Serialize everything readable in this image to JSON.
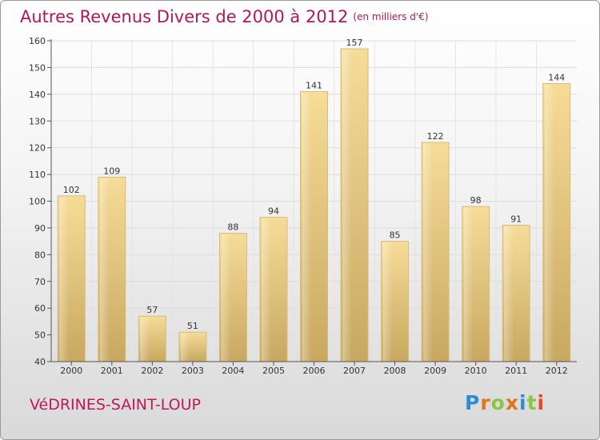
{
  "chart_data": {
    "type": "bar",
    "title": "Autres Revenus Divers de 2000 à 2012",
    "subtitle": "(en milliers d'€)",
    "categories": [
      "2000",
      "2001",
      "2002",
      "2003",
      "2004",
      "2005",
      "2006",
      "2007",
      "2008",
      "2009",
      "2010",
      "2011",
      "2012"
    ],
    "values": [
      102,
      109,
      57,
      51,
      88,
      94,
      141,
      157,
      85,
      122,
      98,
      91,
      144
    ],
    "ylim": [
      40,
      160
    ],
    "yticks": [
      40,
      50,
      60,
      70,
      80,
      90,
      100,
      110,
      120,
      130,
      140,
      150,
      160
    ],
    "grid": true,
    "bar_color": "#e8c97c",
    "title_color": "#b0185a"
  },
  "footer": {
    "place": "VéDRINES-SAINT-LOUP",
    "logo": [
      "P",
      "r",
      "o",
      "x",
      "i",
      "t",
      "i"
    ]
  }
}
